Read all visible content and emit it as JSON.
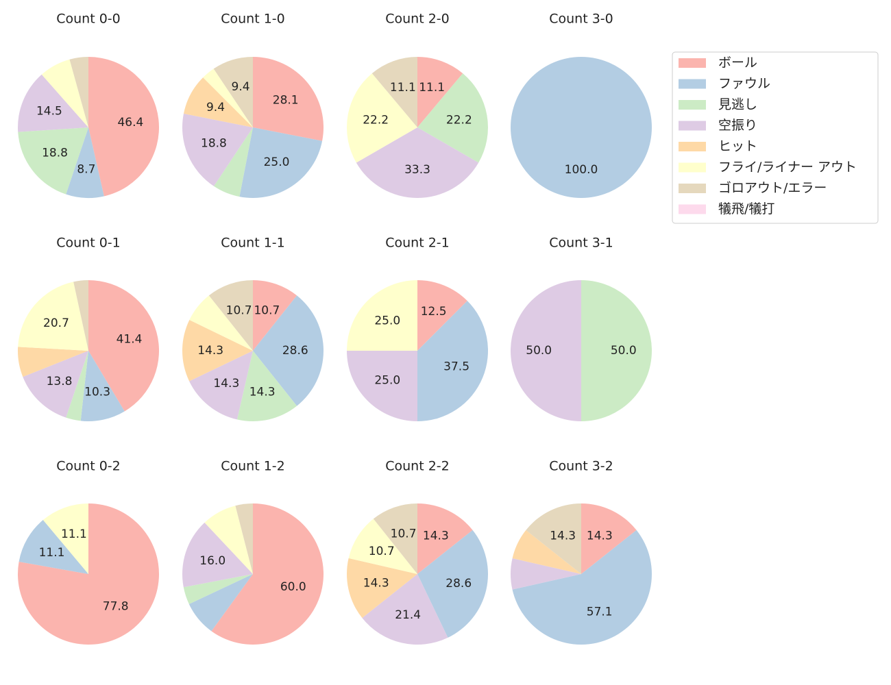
{
  "chart_data": [
    {
      "type": "pie",
      "title": "Count 0-0",
      "legend": "right",
      "categories": [
        "ボール",
        "ファウル",
        "見逃し",
        "空振り",
        "ヒット",
        "フライ/ライナー アウト",
        "ゴロアウト/エラー",
        "犠飛/犠打"
      ],
      "colors": [
        "#fbb4ae",
        "#b3cde3",
        "#ccebc5",
        "#decbe4",
        "#fed9a6",
        "#ffffcc",
        "#e5d8bd",
        "#fddaec"
      ],
      "values": [
        46.4,
        8.7,
        18.8,
        14.5,
        0,
        7.2,
        4.3,
        0
      ],
      "value_labels": [
        "46.4",
        "8.7",
        "18.8",
        "14.5",
        null,
        null,
        null,
        null
      ]
    },
    {
      "type": "pie",
      "title": "Count 1-0",
      "values": [
        28.1,
        25.0,
        6.3,
        18.8,
        9.4,
        3.1,
        9.4,
        0
      ],
      "value_labels": [
        "28.1",
        "25.0",
        null,
        "18.8",
        "9.4",
        null,
        "9.4",
        null
      ]
    },
    {
      "type": "pie",
      "title": "Count 2-0",
      "values": [
        11.1,
        0,
        22.2,
        33.3,
        0,
        22.2,
        11.1,
        0
      ],
      "value_labels": [
        "11.1",
        null,
        "22.2",
        "33.3",
        null,
        "22.2",
        "11.1",
        null
      ]
    },
    {
      "type": "pie",
      "title": "Count 3-0",
      "values": [
        0,
        100,
        0,
        0,
        0,
        0,
        0,
        0
      ],
      "value_labels": [
        null,
        "100.0",
        null,
        null,
        null,
        null,
        null,
        null
      ]
    },
    {
      "type": "pie",
      "title": "Count 0-1",
      "values": [
        41.4,
        10.3,
        3.4,
        13.8,
        6.9,
        20.7,
        3.4,
        0
      ],
      "value_labels": [
        "41.4",
        "10.3",
        null,
        "13.8",
        null,
        "20.7",
        null,
        null
      ]
    },
    {
      "type": "pie",
      "title": "Count 1-1",
      "values": [
        10.7,
        28.6,
        14.3,
        14.3,
        14.3,
        7.1,
        10.7,
        0
      ],
      "value_labels": [
        "10.7",
        "28.6",
        "14.3",
        "14.3",
        "14.3",
        null,
        "10.7",
        null
      ]
    },
    {
      "type": "pie",
      "title": "Count 2-1",
      "values": [
        12.5,
        37.5,
        0,
        25.0,
        0,
        25.0,
        0,
        0
      ],
      "value_labels": [
        "12.5",
        "37.5",
        null,
        "25.0",
        null,
        "25.0",
        null,
        null
      ]
    },
    {
      "type": "pie",
      "title": "Count 3-1",
      "values": [
        0,
        0,
        50.0,
        50.0,
        0,
        0,
        0,
        0
      ],
      "value_labels": [
        null,
        null,
        "50.0",
        "50.0",
        null,
        null,
        null,
        null
      ]
    },
    {
      "type": "pie",
      "title": "Count 0-2",
      "values": [
        77.8,
        11.1,
        0,
        0,
        0,
        11.1,
        0,
        0
      ],
      "value_labels": [
        "77.8",
        "11.1",
        null,
        null,
        null,
        "11.1",
        null,
        null
      ]
    },
    {
      "type": "pie",
      "title": "Count 1-2",
      "values": [
        60.0,
        8.0,
        4.0,
        16.0,
        0,
        8.0,
        4.0,
        0
      ],
      "value_labels": [
        "60.0",
        null,
        null,
        "16.0",
        null,
        null,
        null,
        null
      ]
    },
    {
      "type": "pie",
      "title": "Count 2-2",
      "values": [
        14.3,
        28.6,
        0,
        21.4,
        14.3,
        10.7,
        10.7,
        0
      ],
      "value_labels": [
        "14.3",
        "28.6",
        null,
        "21.4",
        "14.3",
        "10.7",
        "10.7",
        null
      ]
    },
    {
      "type": "pie",
      "title": "Count 3-2",
      "values": [
        14.3,
        57.1,
        0,
        7.1,
        7.1,
        0,
        14.3,
        0
      ],
      "value_labels": [
        "14.3",
        "57.1",
        null,
        null,
        null,
        null,
        "14.3",
        null
      ]
    }
  ]
}
